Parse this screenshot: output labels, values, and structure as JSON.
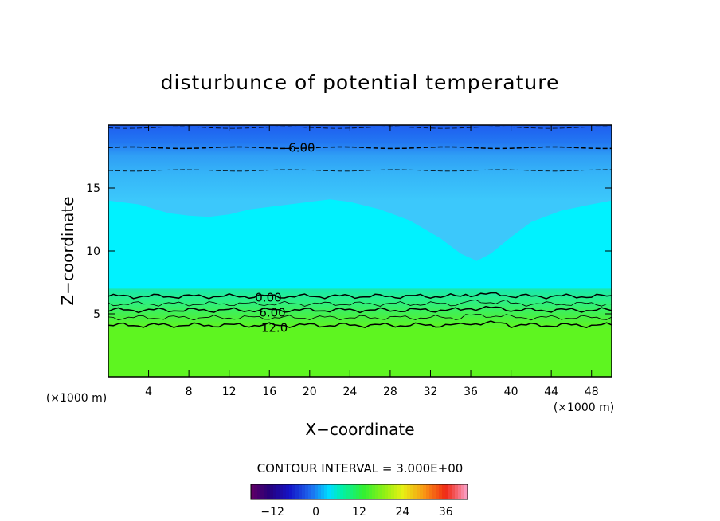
{
  "chart_data": {
    "type": "heatmap",
    "title": "disturbunce of potential temperature",
    "xlabel": "X−coordinate",
    "ylabel": "Z−coordinate",
    "x_unit": "(×1000 m)",
    "y_unit": "(×1000 m)",
    "xlim": [
      0,
      50
    ],
    "ylim": [
      0,
      20
    ],
    "x_ticks": [
      4,
      8,
      12,
      16,
      20,
      24,
      28,
      32,
      36,
      40,
      44,
      48
    ],
    "y_ticks": [
      5,
      10,
      15
    ],
    "x_tick_labels": [
      "4",
      "8",
      "12",
      "16",
      "20",
      "24",
      "28",
      "32",
      "36",
      "40",
      "44",
      "48"
    ],
    "y_tick_labels": [
      "5",
      "10",
      "15"
    ],
    "contour_interval_text": "CONTOUR INTERVAL = 3.000E+00",
    "contour_labels": [
      {
        "text": "-6.00",
        "level": -6,
        "x": 19.0,
        "z": 18.2
      },
      {
        "text": "0.00",
        "level": 0,
        "x": 15.9,
        "z": 6.3
      },
      {
        "text": "6.00",
        "level": 6,
        "x": 16.3,
        "z": 5.1
      },
      {
        "text": "12.0",
        "level": 12,
        "x": 16.5,
        "z": 3.9
      }
    ],
    "contours": [
      {
        "level": -9,
        "style": "dashed",
        "z": 19.8
      },
      {
        "level": -6,
        "style": "dashed",
        "z": 18.2
      },
      {
        "level": -3,
        "style": "dashed",
        "z": 16.4
      },
      {
        "level": 0,
        "style": "solid",
        "z": 6.4
      },
      {
        "level": 3,
        "style": "solid",
        "z": 5.8
      },
      {
        "level": 6,
        "style": "solid",
        "z": 5.3
      },
      {
        "level": 9,
        "style": "solid",
        "z": 4.7
      },
      {
        "level": 12,
        "style": "solid",
        "z": 4.1
      }
    ],
    "colorbar": {
      "min": -18,
      "max": 42,
      "ticks": [
        -12,
        0,
        12,
        24,
        36
      ],
      "tick_labels": [
        "−12",
        "0",
        "12",
        "24",
        "36"
      ]
    },
    "colors": {
      "deep_blue": "#1f5ef0",
      "mid_blue": "#2f9ef5",
      "light_blue": "#3cc8fb",
      "cyan": "#00f2ff",
      "green": "#5ef520"
    }
  }
}
